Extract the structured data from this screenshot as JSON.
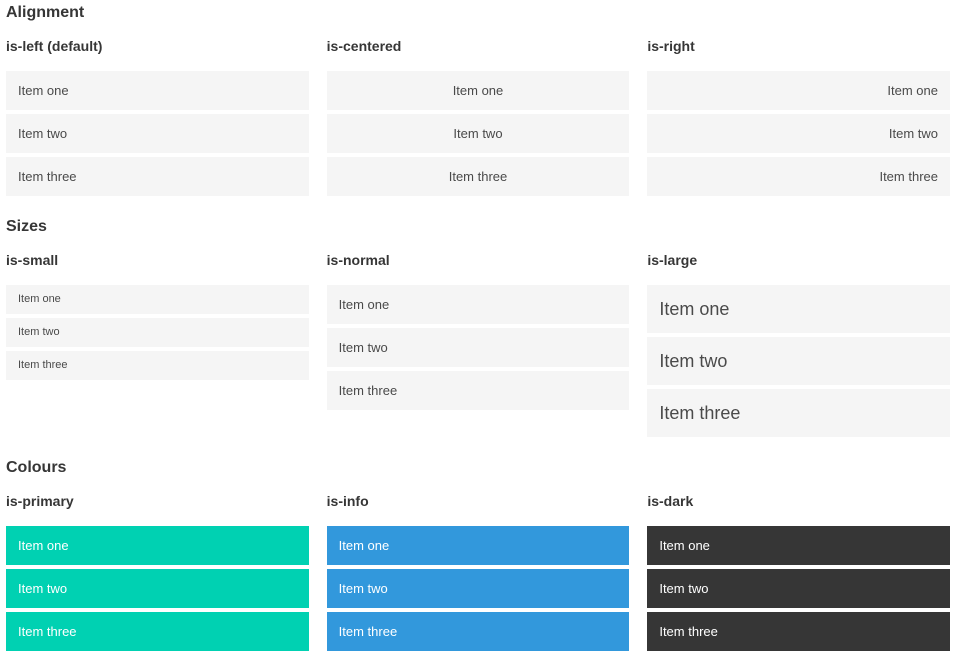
{
  "sections": [
    {
      "title": "Alignment",
      "examples": [
        {
          "label": "is-left (default)",
          "variant": "left",
          "items": [
            "Item one",
            "Item two",
            "Item three"
          ]
        },
        {
          "label": "is-centered",
          "variant": "centered",
          "items": [
            "Item one",
            "Item two",
            "Item three"
          ]
        },
        {
          "label": "is-right",
          "variant": "right",
          "items": [
            "Item one",
            "Item two",
            "Item three"
          ]
        }
      ]
    },
    {
      "title": "Sizes",
      "examples": [
        {
          "label": "is-small",
          "variant": "small",
          "items": [
            "Item one",
            "Item two",
            "Item three"
          ]
        },
        {
          "label": "is-normal",
          "variant": "normal",
          "items": [
            "Item one",
            "Item two",
            "Item three"
          ]
        },
        {
          "label": "is-large",
          "variant": "large",
          "items": [
            "Item one",
            "Item two",
            "Item three"
          ]
        }
      ]
    },
    {
      "title": "Colours",
      "examples": [
        {
          "label": "is-primary",
          "variant": "primary",
          "items": [
            "Item one",
            "Item two",
            "Item three"
          ]
        },
        {
          "label": "is-info",
          "variant": "info",
          "items": [
            "Item one",
            "Item two",
            "Item three"
          ]
        },
        {
          "label": "is-dark",
          "variant": "dark",
          "items": [
            "Item one",
            "Item two",
            "Item three"
          ]
        }
      ]
    }
  ],
  "colors": {
    "primary": "#00d1b2",
    "info": "#3298dc",
    "dark": "#363636",
    "item_bg": "#f5f5f5",
    "item_text": "#4a4a4a",
    "heading_text": "#363636",
    "on_color_text": "#ffffff"
  }
}
